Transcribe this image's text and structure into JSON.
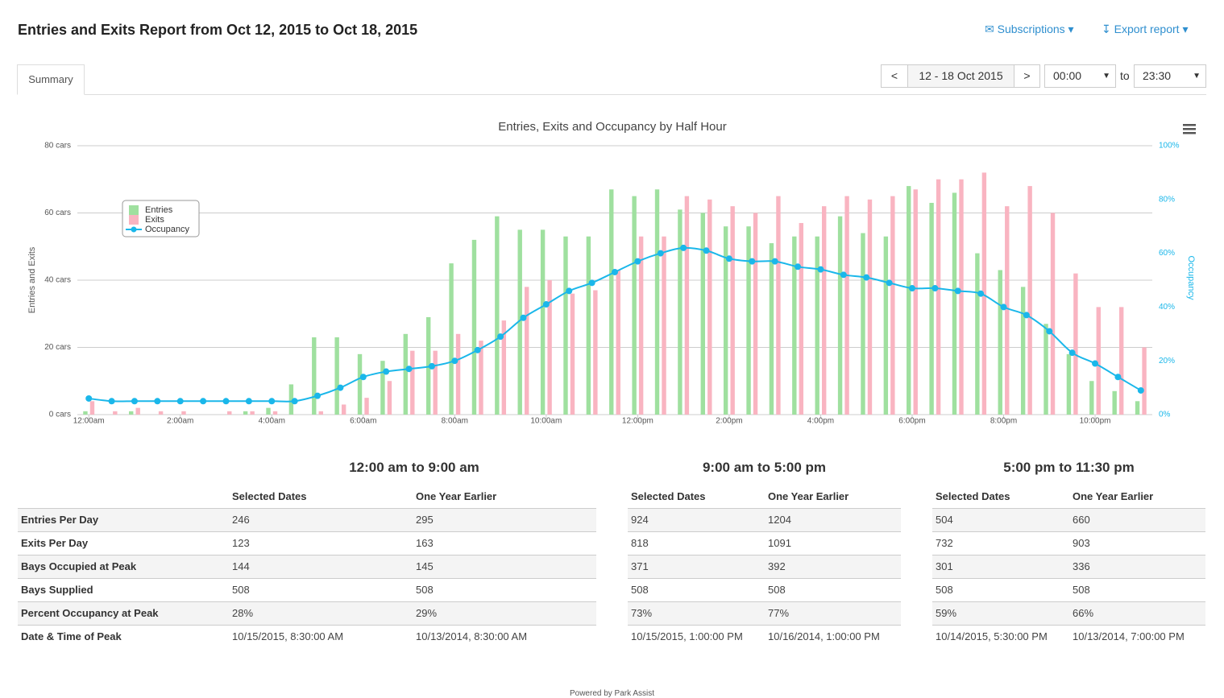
{
  "header": {
    "title": "Entries and Exits Report from Oct 12, 2015 to Oct 18, 2015",
    "subscriptions": "Subscriptions",
    "export": "Export report"
  },
  "tabs": [
    "Summary"
  ],
  "controls": {
    "prev": "<",
    "range": "12 - 18 Oct 2015",
    "next": ">",
    "from": "00:00",
    "to_label": "to",
    "to": "23:30"
  },
  "chart_data": {
    "type": "bar",
    "title": "Entries, Exits and Occupancy by Half Hour",
    "y_label": "Entries and Exits",
    "y2_label": "Occupancy",
    "legend": "top-left",
    "grid": true,
    "categories": [
      "12:00am",
      null,
      null,
      null,
      "2:00am",
      null,
      null,
      null,
      "4:00am",
      null,
      null,
      null,
      "6:00am",
      null,
      null,
      null,
      "8:00am",
      null,
      null,
      null,
      "10:00am",
      null,
      null,
      null,
      "12:00pm",
      null,
      null,
      null,
      "2:00pm",
      null,
      null,
      null,
      "4:00pm",
      null,
      null,
      null,
      "6:00pm",
      null,
      null,
      null,
      "8:00pm",
      null,
      null,
      null,
      "10:00pm",
      null,
      null
    ],
    "ylim": [
      0,
      80
    ],
    "yticks": [
      {
        "value": 0,
        "label": "0 cars"
      },
      {
        "value": 20,
        "label": "20 cars"
      },
      {
        "value": 40,
        "label": "40 cars"
      },
      {
        "value": 60,
        "label": "60 cars"
      },
      {
        "value": 80,
        "label": "80 cars"
      }
    ],
    "y2lim": [
      0,
      100
    ],
    "y2ticks": [
      {
        "value": 0,
        "label": "0%"
      },
      {
        "value": 20,
        "label": "20%"
      },
      {
        "value": 40,
        "label": "40%"
      },
      {
        "value": 60,
        "label": "60%"
      },
      {
        "value": 80,
        "label": "80%"
      },
      {
        "value": 100,
        "label": "100%"
      }
    ],
    "series": [
      {
        "name": "Entries",
        "type": "bar",
        "color": "#9fe09f",
        "values": [
          1,
          0,
          1,
          0,
          0,
          0,
          0,
          1,
          2,
          9,
          23,
          23,
          18,
          16,
          24,
          29,
          45,
          52,
          59,
          55,
          55,
          53,
          53,
          67,
          65,
          67,
          61,
          60,
          56,
          56,
          51,
          53,
          53,
          59,
          54,
          53,
          68,
          63,
          66,
          48,
          43,
          38,
          27,
          18,
          10,
          7,
          4
        ]
      },
      {
        "name": "Exits",
        "type": "bar",
        "color": "#f9b4c1",
        "values": [
          4,
          1,
          2,
          1,
          1,
          0,
          1,
          1,
          1,
          0,
          1,
          3,
          5,
          10,
          19,
          19,
          24,
          22,
          28,
          38,
          40,
          36,
          37,
          43,
          53,
          53,
          65,
          64,
          62,
          60,
          65,
          57,
          62,
          65,
          64,
          65,
          67,
          70,
          70,
          72,
          62,
          68,
          60,
          42,
          32,
          32,
          20
        ]
      },
      {
        "name": "Occupancy",
        "type": "line",
        "axis": "y2",
        "color": "#1ab7ea",
        "values": [
          6,
          5,
          5,
          5,
          5,
          5,
          5,
          5,
          5,
          5,
          7,
          10,
          14,
          16,
          17,
          18,
          20,
          24,
          29,
          36,
          41,
          46,
          49,
          53,
          57,
          60,
          62,
          61,
          58,
          57,
          57,
          55,
          54,
          52,
          51,
          49,
          47,
          47,
          46,
          45,
          40,
          37,
          31,
          23,
          19,
          14,
          9
        ]
      }
    ]
  },
  "tables": {
    "row_labels": [
      "Entries Per Day",
      "Exits Per Day",
      "Bays Occupied at Peak",
      "Bays Supplied",
      "Percent Occupancy at Peak",
      "Date & Time of Peak"
    ],
    "sections": [
      {
        "title": "12:00 am to 9:00 am",
        "columns": [
          "Selected Dates",
          "One Year Earlier"
        ],
        "rows": [
          [
            "246",
            "295"
          ],
          [
            "123",
            "163"
          ],
          [
            "144",
            "145"
          ],
          [
            "508",
            "508"
          ],
          [
            "28%",
            "29%"
          ],
          [
            "10/15/2015, 8:30:00 AM",
            "10/13/2014, 8:30:00 AM"
          ]
        ]
      },
      {
        "title": "9:00 am to 5:00 pm",
        "columns": [
          "Selected Dates",
          "One Year Earlier"
        ],
        "rows": [
          [
            "924",
            "1204"
          ],
          [
            "818",
            "1091"
          ],
          [
            "371",
            "392"
          ],
          [
            "508",
            "508"
          ],
          [
            "73%",
            "77%"
          ],
          [
            "10/15/2015, 1:00:00 PM",
            "10/16/2014, 1:00:00 PM"
          ]
        ]
      },
      {
        "title": "5:00 pm to 11:30 pm",
        "columns": [
          "Selected Dates",
          "One Year Earlier"
        ],
        "rows": [
          [
            "504",
            "660"
          ],
          [
            "732",
            "903"
          ],
          [
            "301",
            "336"
          ],
          [
            "508",
            "508"
          ],
          [
            "59%",
            "66%"
          ],
          [
            "10/14/2015, 5:30:00 PM",
            "10/13/2014, 7:00:00 PM"
          ]
        ]
      }
    ]
  },
  "footer": "Powered by Park Assist"
}
